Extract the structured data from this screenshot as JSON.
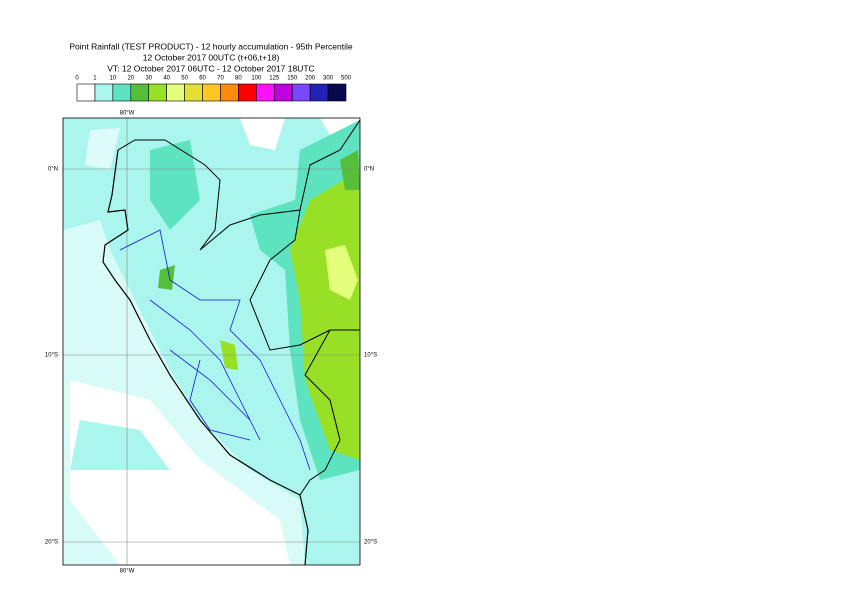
{
  "header": {
    "lines": [
      "Point Rainfall (TEST PRODUCT) - 12 hourly accumulation - 95th Percentile",
      "12 October 2017 00UTC (t+06,t+18)",
      "VT: 12 October 2017 06UTC - 12 October 2017 18UTC"
    ]
  },
  "legend": {
    "labels": [
      "0",
      "1",
      "10",
      "20",
      "30",
      "40",
      "50",
      "60",
      "70",
      "80",
      "100",
      "125",
      "150",
      "200",
      "300",
      "500"
    ],
    "colors": [
      "#ffffff",
      "#aaf5ee",
      "#5de3c0",
      "#56bf3a",
      "#98e025",
      "#e4ff7c",
      "#e3e032",
      "#ffc624",
      "#ff8a0a",
      "#ff0000",
      "#ff10ff",
      "#c000e0",
      "#7a46ff",
      "#2222b8",
      "#08084e"
    ]
  },
  "map": {
    "lon_label": "80°W",
    "lat_labels": [
      "0°N",
      "10°S",
      "20°S"
    ]
  }
}
